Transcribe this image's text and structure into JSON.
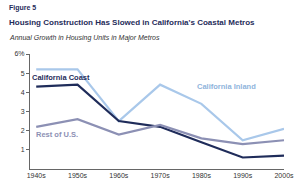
{
  "chart_data": {
    "type": "line",
    "annotations": [
      "Figure 5"
    ],
    "title": "Housing Construction Has Slowed in California's Coastal Metros",
    "subtitle": "Annual Growth in Housing Units in Major Metros",
    "categories": [
      "1940s",
      "1950s",
      "1960s",
      "1970s",
      "1980s",
      "1990s",
      "2000s"
    ],
    "series": [
      {
        "name": "California Inland",
        "color": "#a9c8ea",
        "values": [
          5.2,
          5.2,
          2.5,
          4.4,
          3.4,
          1.5,
          2.1
        ]
      },
      {
        "name": "California Coast",
        "color": "#1f2c5a",
        "values": [
          4.3,
          4.4,
          2.5,
          2.2,
          1.4,
          0.6,
          0.7
        ]
      },
      {
        "name": "Rest of U.S.",
        "color": "#8c90b4",
        "values": [
          2.2,
          2.6,
          1.8,
          2.3,
          1.6,
          1.3,
          1.5
        ]
      }
    ],
    "ylim": [
      0,
      6
    ],
    "yticks": [
      1,
      2,
      3,
      4,
      5,
      {
        "value": 6,
        "label": "6%"
      }
    ],
    "grid": false
  }
}
